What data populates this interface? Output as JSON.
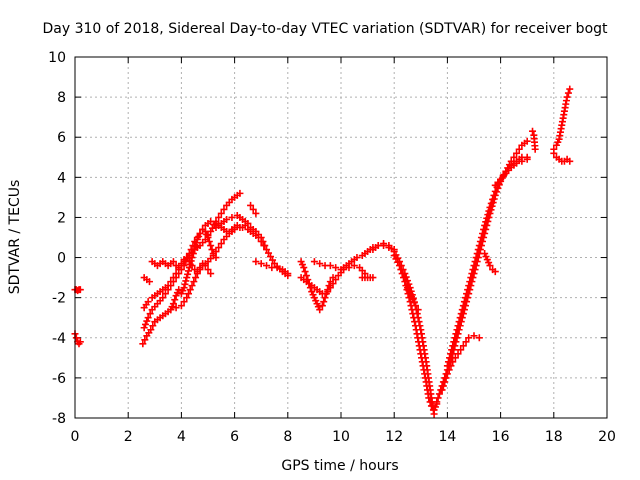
{
  "chart_data": {
    "type": "scatter",
    "title": "Day 310 of 2018, Sidereal Day-to-day VTEC variation (SDTVAR) for receiver bogt",
    "xlabel": "GPS time / hours",
    "ylabel": "SDTVAR / TECUs",
    "xlim": [
      0,
      20
    ],
    "ylim": [
      -8,
      10
    ],
    "xticks": [
      "0",
      "2",
      "4",
      "6",
      "8",
      "10",
      "12",
      "14",
      "16",
      "18",
      "20"
    ],
    "yticks": [
      "-8",
      "-6",
      "-4",
      "-2",
      "0",
      "2",
      "4",
      "6",
      "8",
      "10"
    ],
    "grid": true,
    "marker": "+",
    "color": "#ff0000",
    "segments": [
      {
        "x": [
          0.0,
          0.05,
          0.1,
          0.15,
          0.2
        ],
        "y": [
          -1.6,
          -1.6,
          -1.65,
          -1.6,
          -1.6
        ]
      },
      {
        "x": [
          0.0,
          0.05,
          0.1,
          0.15,
          0.2
        ],
        "y": [
          -3.8,
          -4.0,
          -4.2,
          -4.3,
          -4.2
        ]
      },
      {
        "x": [
          2.55,
          2.7,
          2.85,
          3.0,
          3.2,
          3.4,
          3.6,
          3.8,
          4.0,
          4.2,
          4.4,
          4.6,
          4.8,
          5.0,
          5.2,
          5.4,
          5.6,
          5.8,
          6.0,
          6.2,
          6.4,
          6.6,
          6.8,
          7.0,
          7.2,
          7.5,
          7.8,
          8.0
        ],
        "y": [
          -4.3,
          -3.9,
          -3.6,
          -3.2,
          -3.0,
          -2.8,
          -2.6,
          -2.5,
          -2.4,
          -2.0,
          -1.4,
          -0.8,
          -0.4,
          -0.2,
          0.1,
          0.5,
          0.9,
          1.2,
          1.4,
          1.5,
          1.6,
          1.5,
          1.3,
          1.0,
          0.4,
          -0.3,
          -0.7,
          -0.9
        ]
      },
      {
        "x": [
          2.6,
          2.75,
          2.9,
          3.1,
          3.3,
          3.5,
          3.7,
          3.9,
          4.1,
          4.3,
          4.5,
          4.7,
          4.9,
          5.1,
          5.3,
          5.5,
          5.7,
          5.9,
          6.1,
          6.3,
          6.5,
          6.7,
          6.9,
          7.1
        ],
        "y": [
          -3.5,
          -3.0,
          -2.6,
          -2.3,
          -2.0,
          -1.6,
          -1.2,
          -0.8,
          -0.4,
          0.2,
          0.8,
          1.2,
          1.6,
          1.8,
          1.7,
          1.5,
          1.3,
          1.4,
          1.6,
          1.5,
          1.4,
          1.2,
          1.0,
          0.6
        ]
      },
      {
        "x": [
          2.6,
          2.75,
          2.9,
          3.1,
          3.3,
          3.5,
          3.7,
          3.9,
          4.1,
          4.3,
          4.5,
          4.7,
          4.9,
          5.1,
          5.3,
          5.5,
          5.7,
          5.9,
          6.1,
          6.2
        ],
        "y": [
          -2.5,
          -2.2,
          -2.0,
          -1.8,
          -1.6,
          -1.4,
          -1.0,
          -0.6,
          -0.2,
          0.1,
          0.4,
          0.6,
          0.9,
          1.3,
          1.8,
          2.2,
          2.6,
          2.9,
          3.1,
          3.2
        ]
      },
      {
        "x": [
          2.6,
          2.7,
          2.8
        ],
        "y": [
          -1.0,
          -1.1,
          -1.2
        ]
      },
      {
        "x": [
          2.9,
          3.0,
          3.1,
          3.2,
          3.3,
          3.4,
          3.5,
          3.6,
          3.7,
          3.8,
          3.9,
          4.0,
          4.1,
          4.2,
          4.3,
          4.4,
          4.5,
          4.6,
          4.7,
          4.8,
          4.9,
          5.0,
          5.1
        ],
        "y": [
          -0.2,
          -0.3,
          -0.4,
          -0.3,
          -0.2,
          -0.3,
          -0.4,
          -0.3,
          -0.2,
          -0.4,
          -0.5,
          -0.3,
          -0.1,
          0.0,
          -0.2,
          -0.4,
          -0.6,
          -0.7,
          -0.5,
          -0.3,
          -0.4,
          -0.6,
          -0.8
        ]
      },
      {
        "x": [
          3.6,
          3.7,
          3.8,
          3.9,
          4.0,
          4.1,
          4.2,
          4.3,
          4.4,
          4.5,
          4.6,
          4.7,
          4.8,
          4.9,
          5.0,
          5.1,
          5.2,
          5.3
        ],
        "y": [
          -2.6,
          -2.3,
          -1.9,
          -1.6,
          -1.8,
          -1.5,
          -1.0,
          -0.5,
          0.0,
          0.4,
          0.9,
          1.2,
          1.4,
          1.3,
          1.0,
          0.6,
          0.2,
          0.0
        ]
      },
      {
        "x": [
          5.3,
          5.5,
          5.7,
          5.9,
          6.1,
          6.3,
          6.5
        ],
        "y": [
          1.5,
          1.7,
          1.9,
          2.0,
          2.1,
          1.9,
          1.7
        ]
      },
      {
        "x": [
          6.6,
          6.7,
          6.8
        ],
        "y": [
          2.6,
          2.4,
          2.2
        ]
      },
      {
        "x": [
          6.8,
          7.0,
          7.2,
          7.4,
          7.6,
          7.8,
          8.0
        ],
        "y": [
          -0.2,
          -0.3,
          -0.4,
          -0.5,
          -0.5,
          -0.6,
          -0.8
        ]
      },
      {
        "x": [
          8.5,
          8.6,
          8.7,
          8.8,
          8.9,
          9.0,
          9.1,
          9.2,
          9.3,
          9.4,
          9.5,
          9.6,
          9.7
        ],
        "y": [
          -0.2,
          -0.5,
          -0.9,
          -1.3,
          -1.7,
          -2.0,
          -2.3,
          -2.6,
          -2.4,
          -2.0,
          -1.6,
          -1.2,
          -1.0
        ]
      },
      {
        "x": [
          8.5,
          8.7,
          8.9,
          9.1,
          9.3,
          9.5,
          9.7,
          9.9,
          10.1,
          10.3,
          10.5,
          10.7,
          10.9
        ],
        "y": [
          -1.0,
          -1.2,
          -1.4,
          -1.6,
          -1.8,
          -1.7,
          -1.3,
          -0.9,
          -0.6,
          -0.5,
          -0.4,
          -0.5,
          -0.8
        ]
      },
      {
        "x": [
          9.0,
          9.2,
          9.4,
          9.6,
          9.8,
          10.0,
          10.2,
          10.4,
          10.6,
          10.8,
          11.0,
          11.2,
          11.4,
          11.6,
          11.8,
          12.0
        ],
        "y": [
          -0.2,
          -0.3,
          -0.4,
          -0.4,
          -0.5,
          -0.6,
          -0.4,
          -0.2,
          0.0,
          0.1,
          0.3,
          0.5,
          0.6,
          0.6,
          0.5,
          0.4
        ]
      },
      {
        "x": [
          10.8,
          10.9,
          11.0,
          11.1,
          11.2
        ],
        "y": [
          -1.0,
          -1.0,
          -1.0,
          -1.0,
          -1.0
        ]
      },
      {
        "x": [
          11.2,
          11.4,
          11.6,
          11.8,
          12.0,
          12.2,
          12.4,
          12.6,
          12.8,
          13.0,
          13.2,
          13.4,
          13.5
        ],
        "y": [
          0.4,
          0.6,
          0.7,
          0.6,
          0.3,
          -0.2,
          -0.8,
          -1.5,
          -2.4,
          -3.6,
          -5.2,
          -7.0,
          -7.8
        ]
      },
      {
        "x": [
          12.0,
          12.2,
          12.4,
          12.6,
          12.8,
          13.0,
          13.2,
          13.3,
          13.4,
          13.5,
          13.6
        ],
        "y": [
          0.1,
          -0.4,
          -1.2,
          -2.2,
          -3.4,
          -4.8,
          -6.2,
          -7.0,
          -7.4,
          -7.6,
          -7.3
        ]
      },
      {
        "x": [
          12.5,
          12.6,
          12.7,
          12.8,
          12.9
        ],
        "y": [
          -1.5,
          -1.8,
          -2.1,
          -2.4,
          -2.6
        ]
      },
      {
        "x": [
          13.6,
          13.8,
          14.0,
          14.2,
          14.4,
          14.6,
          14.8,
          15.0,
          15.2,
          15.4,
          15.6,
          15.8,
          16.0,
          16.2,
          16.4,
          16.6,
          16.8,
          17.0
        ],
        "y": [
          -7.2,
          -6.4,
          -5.6,
          -4.8,
          -3.8,
          -2.8,
          -1.8,
          -0.8,
          0.2,
          1.2,
          2.2,
          3.1,
          3.8,
          4.3,
          4.8,
          5.2,
          5.6,
          5.8
        ]
      },
      {
        "x": [
          13.8,
          14.0,
          14.2,
          14.4,
          14.6,
          14.8,
          15.0,
          15.2
        ],
        "y": [
          -6.6,
          -5.8,
          -5.2,
          -4.8,
          -4.4,
          -4.0,
          -3.9,
          -4.0
        ]
      },
      {
        "x": [
          14.0,
          14.2,
          14.4,
          14.6,
          14.8,
          15.0,
          15.2,
          15.4,
          15.6,
          15.8,
          16.0,
          16.2,
          16.4,
          16.6,
          16.8,
          17.0
        ],
        "y": [
          -5.4,
          -4.4,
          -3.4,
          -2.4,
          -1.4,
          -0.4,
          0.6,
          1.6,
          2.5,
          3.3,
          3.9,
          4.3,
          4.6,
          4.8,
          5.0,
          5.0
        ]
      },
      {
        "x": [
          15.4,
          15.5,
          15.6,
          15.7,
          15.8
        ],
        "y": [
          0.2,
          -0.1,
          -0.4,
          -0.6,
          -0.7
        ]
      },
      {
        "x": [
          15.8,
          16.0,
          16.2,
          16.4,
          16.6,
          16.8,
          17.0
        ],
        "y": [
          3.6,
          3.9,
          4.2,
          4.5,
          4.7,
          4.8,
          4.9
        ]
      },
      {
        "x": [
          17.2,
          17.25,
          17.3
        ],
        "y": [
          6.3,
          6.1,
          5.4
        ]
      },
      {
        "x": [
          18.0,
          18.1,
          18.2,
          18.3,
          18.4,
          18.5,
          18.6
        ],
        "y": [
          5.2,
          5.0,
          4.9,
          4.8,
          4.8,
          4.9,
          4.8
        ]
      },
      {
        "x": [
          18.0,
          18.1,
          18.2,
          18.3,
          18.4,
          18.5,
          18.6
        ],
        "y": [
          5.4,
          5.6,
          5.9,
          6.6,
          7.3,
          8.0,
          8.4
        ]
      }
    ]
  }
}
